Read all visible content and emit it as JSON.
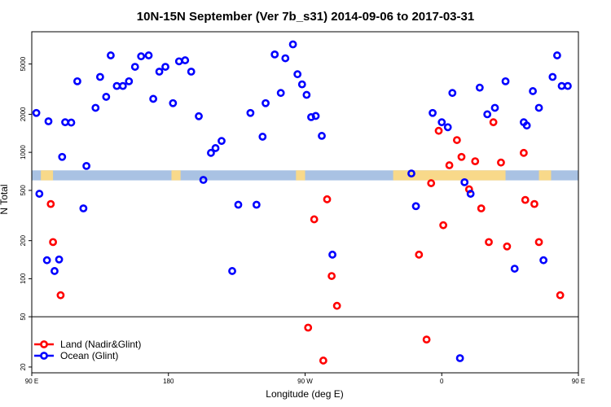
{
  "chart_data": {
    "type": "scatter",
    "title": "10N-15N September (Ver 7b_s31)   2014-09-06 to 2017-03-31",
    "xlabel": "Longitude (deg E)",
    "ylabel": "N Total",
    "y_scale": "log",
    "xlim": [
      90,
      450
    ],
    "ylim": [
      18,
      9000
    ],
    "x_ticks": [
      {
        "value": 90,
        "label": "90 E"
      },
      {
        "value": 180,
        "label": "180"
      },
      {
        "value": 270,
        "label": "90 W"
      },
      {
        "value": 360,
        "label": "0"
      },
      {
        "value": 450,
        "label": "90 E"
      },
      {
        "value": 540,
        "label": "180"
      }
    ],
    "y_ticks": [
      {
        "value": 20,
        "label": "20"
      },
      {
        "value": 50,
        "label": "50"
      },
      {
        "value": 100,
        "label": "100"
      },
      {
        "value": 200,
        "label": "200"
      },
      {
        "value": 500,
        "label": "500"
      },
      {
        "value": 1000,
        "label": "1000"
      },
      {
        "value": 2000,
        "label": "2000"
      },
      {
        "value": 5000,
        "label": "5000"
      }
    ],
    "reference_line": 50,
    "land_strip": {
      "y_low": 600,
      "y_high": 720
    },
    "legend": {
      "position": "bottom-left"
    },
    "series": [
      {
        "name": "Land (Nadir&Glint)",
        "color": "#ff0000",
        "points": [
          [
            102.5,
            390
          ],
          [
            104,
            195
          ],
          [
            109,
            74
          ],
          [
            272,
            41
          ],
          [
            276,
            295
          ],
          [
            282,
            22.5
          ],
          [
            284.5,
            425
          ],
          [
            287.5,
            105
          ],
          [
            291,
            61
          ],
          [
            345,
            155
          ],
          [
            350,
            33
          ],
          [
            353,
            570
          ],
          [
            358,
            1480
          ],
          [
            361,
            265
          ],
          [
            365,
            790
          ],
          [
            370,
            1250
          ],
          [
            373,
            920
          ],
          [
            378,
            510
          ],
          [
            382,
            850
          ],
          [
            386,
            360
          ],
          [
            391,
            195
          ],
          [
            394,
            1730
          ],
          [
            399,
            830
          ],
          [
            403,
            180
          ],
          [
            414,
            990
          ],
          [
            415,
            420
          ],
          [
            421,
            390
          ],
          [
            424,
            195
          ],
          [
            438,
            74
          ]
        ]
      },
      {
        "name": "Ocean (Glint)",
        "color": "#0000ff",
        "points": [
          [
            93,
            2050
          ],
          [
            95,
            470
          ],
          [
            100,
            140
          ],
          [
            101,
            1760
          ],
          [
            105,
            115
          ],
          [
            108,
            142
          ],
          [
            110,
            920
          ],
          [
            112,
            1730
          ],
          [
            116,
            1720
          ],
          [
            120,
            3650
          ],
          [
            124,
            360
          ],
          [
            126,
            780
          ],
          [
            132,
            2250
          ],
          [
            135,
            3950
          ],
          [
            139,
            2750
          ],
          [
            142,
            5850
          ],
          [
            146,
            3350
          ],
          [
            150,
            3350
          ],
          [
            154,
            3650
          ],
          [
            158,
            4750
          ],
          [
            162,
            5750
          ],
          [
            167,
            5850
          ],
          [
            170,
            2650
          ],
          [
            174,
            4350
          ],
          [
            178,
            4750
          ],
          [
            183,
            2450
          ],
          [
            187,
            5250
          ],
          [
            191,
            5350
          ],
          [
            195,
            4350
          ],
          [
            200,
            1930
          ],
          [
            203,
            605
          ],
          [
            208,
            990
          ],
          [
            211,
            1080
          ],
          [
            215,
            1230
          ],
          [
            222,
            115
          ],
          [
            226,
            385
          ],
          [
            234,
            2050
          ],
          [
            238,
            385
          ],
          [
            242,
            1330
          ],
          [
            244,
            2450
          ],
          [
            250,
            5950
          ],
          [
            254,
            2950
          ],
          [
            257,
            5550
          ],
          [
            262,
            7150
          ],
          [
            265,
            4150
          ],
          [
            268,
            3450
          ],
          [
            271,
            2850
          ],
          [
            274,
            1900
          ],
          [
            277,
            1940
          ],
          [
            281,
            1350
          ],
          [
            288,
            155
          ],
          [
            340,
            680
          ],
          [
            343,
            375
          ],
          [
            354,
            2050
          ],
          [
            360,
            1730
          ],
          [
            364,
            1580
          ],
          [
            367,
            2950
          ],
          [
            372,
            23.5
          ],
          [
            375,
            580
          ],
          [
            379,
            470
          ],
          [
            385,
            3250
          ],
          [
            390,
            2000
          ],
          [
            395,
            2250
          ],
          [
            402,
            3650
          ],
          [
            408,
            120
          ],
          [
            414,
            1730
          ],
          [
            416,
            1630
          ],
          [
            420,
            3050
          ],
          [
            424,
            2250
          ],
          [
            427,
            140
          ],
          [
            433,
            3950
          ],
          [
            436,
            5850
          ],
          [
            439,
            3350
          ],
          [
            443,
            3350
          ]
        ]
      }
    ]
  }
}
